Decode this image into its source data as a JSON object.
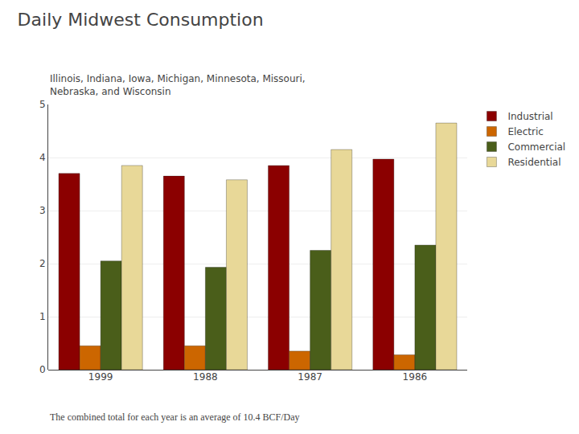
{
  "chart_data": {
    "type": "bar",
    "title": "Daily Midwest Consumption",
    "subtitle": "Illinois, Indiana, Iowa, Michigan, Minnesota, Missouri,\nNebraska, and Wisconsin",
    "annotations": [
      "The combined total for each year is an average of 10.4 BCF/Day"
    ],
    "categories": [
      "1999",
      "1988",
      "1987",
      "1986"
    ],
    "series": [
      {
        "name": "Industrial",
        "color": "#8B0000",
        "values": [
          3.7,
          3.65,
          3.85,
          3.97
        ]
      },
      {
        "name": "Electric",
        "color": "#CC6600",
        "values": [
          0.45,
          0.45,
          0.35,
          0.28
        ]
      },
      {
        "name": "Commercial",
        "color": "#4A5E1A",
        "values": [
          2.05,
          1.93,
          2.25,
          2.35
        ]
      },
      {
        "name": "Residential",
        "color": "#E8D898",
        "values": [
          3.85,
          3.58,
          4.15,
          4.65
        ]
      }
    ],
    "ylim": [
      0,
      5
    ],
    "yticks": [
      0,
      1,
      2,
      3,
      4,
      5
    ],
    "grid": true,
    "legend": "upper right"
  }
}
